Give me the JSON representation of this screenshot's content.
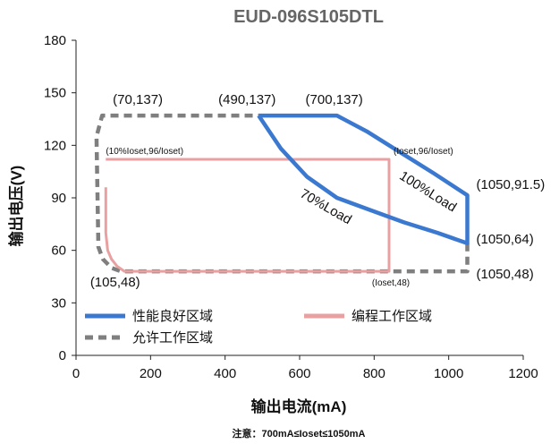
{
  "chart_data": {
    "type": "line",
    "title": "EUD-096S105DTL",
    "xlabel": "输出电流(mA)",
    "ylabel": "输出电压(V)",
    "note": "注意：700mA≤Ioset≤1050mA",
    "xlim": [
      0,
      1200
    ],
    "ylim": [
      0,
      180
    ],
    "xticks": [
      "0",
      "200",
      "400",
      "600",
      "800",
      "1000",
      "1200"
    ],
    "yticks": [
      "0",
      "30",
      "60",
      "90",
      "120",
      "150",
      "180"
    ],
    "grid": false,
    "series": [
      {
        "name": "性能良好区域",
        "color": "#3b78d0",
        "style": "solid",
        "x": [
          490,
          700,
          780,
          870,
          960,
          1050,
          1050,
          970,
          880,
          790,
          700,
          620,
          550,
          490
        ],
        "y": [
          137,
          137,
          128,
          116,
          104,
          91.5,
          64,
          70,
          76,
          83,
          90,
          102,
          118,
          137
        ]
      },
      {
        "name": "编程工作区域",
        "color": "#e8a0a0",
        "style": "solid",
        "x": [
          80,
          80,
          85,
          95,
          110,
          130,
          840,
          840,
          80
        ],
        "y": [
          96,
          70,
          60,
          55,
          51,
          48,
          48,
          112,
          112
        ]
      },
      {
        "name": "允许工作区域",
        "color": "#7f7f7f",
        "style": "dashed",
        "x": [
          1050,
          1050,
          120,
          95,
          72,
          60,
          55,
          70,
          490
        ],
        "y": [
          64,
          48,
          48,
          50,
          55,
          62,
          125,
          137,
          137
        ]
      }
    ],
    "annotations": [
      {
        "text": "(70,137)",
        "x": 70,
        "y": 137
      },
      {
        "text": "(490,137)",
        "x": 490,
        "y": 137
      },
      {
        "text": "(700,137)",
        "x": 700,
        "y": 137
      },
      {
        "text": "(10%Ioset,96/Ioset)",
        "x": 80,
        "y": 112
      },
      {
        "text": "(Ioset,96/Ioset)",
        "x": 840,
        "y": 112
      },
      {
        "text": "(1050,91.5)",
        "x": 1050,
        "y": 91.5
      },
      {
        "text": "(1050,64)",
        "x": 1050,
        "y": 64
      },
      {
        "text": "(1050,48)",
        "x": 1050,
        "y": 48
      },
      {
        "text": "(105,48)",
        "x": 105,
        "y": 48
      },
      {
        "text": "(Ioset,48)",
        "x": 840,
        "y": 48
      }
    ],
    "curve_labels": [
      {
        "text": "70%Load"
      },
      {
        "text": "100%Load"
      }
    ],
    "legend": [
      "性能良好区域",
      "编程工作区域",
      "允许工作区域"
    ]
  }
}
